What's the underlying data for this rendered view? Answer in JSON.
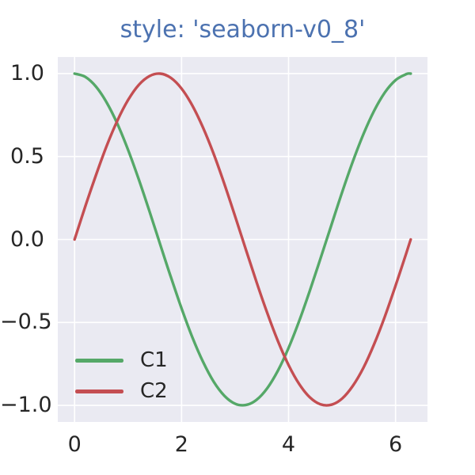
{
  "chart_data": {
    "type": "line",
    "title": "style: 'seaborn-v0_8'",
    "xlabel": "",
    "ylabel": "",
    "grid": true,
    "xlim": [
      -0.3142,
      6.5973
    ],
    "ylim": [
      -1.1,
      1.1
    ],
    "x": [
      0,
      0.2,
      0.4,
      0.6,
      0.8,
      1.0,
      1.2,
      1.4,
      1.6,
      1.8,
      2.0,
      2.2,
      2.4,
      2.6,
      2.8,
      3.0,
      3.2,
      3.4,
      3.6,
      3.8,
      4.0,
      4.2,
      4.4,
      4.6,
      4.8,
      5.0,
      5.2,
      5.4,
      5.6,
      5.8,
      6.0,
      6.2,
      6.2832
    ],
    "series": [
      {
        "name": "C1",
        "color": "#55A868",
        "values": [
          1.0,
          0.98,
          0.921,
          0.825,
          0.697,
          0.54,
          0.362,
          0.17,
          -0.029,
          -0.227,
          -0.416,
          -0.589,
          -0.737,
          -0.857,
          -0.942,
          -0.99,
          -0.998,
          -0.967,
          -0.897,
          -0.791,
          -0.654,
          -0.49,
          -0.307,
          -0.112,
          0.087,
          0.284,
          0.469,
          0.635,
          0.776,
          0.886,
          0.96,
          0.997,
          1.0
        ]
      },
      {
        "name": "C2",
        "color": "#C44E52",
        "values": [
          0.0,
          0.199,
          0.389,
          0.565,
          0.717,
          0.841,
          0.932,
          0.985,
          1.0,
          0.974,
          0.909,
          0.808,
          0.675,
          0.516,
          0.335,
          0.141,
          -0.058,
          -0.256,
          -0.442,
          -0.612,
          -0.757,
          -0.872,
          -0.952,
          -0.994,
          -0.996,
          -0.959,
          -0.883,
          -0.773,
          -0.631,
          -0.465,
          -0.279,
          -0.083,
          0.0
        ]
      }
    ],
    "xticks": {
      "values": [
        0,
        2,
        4,
        6
      ],
      "labels": [
        "0",
        "2",
        "4",
        "6"
      ]
    },
    "yticks": {
      "values": [
        1.0,
        0.5,
        0.0,
        -0.5,
        -1.0
      ],
      "labels": [
        "1.0",
        "0.5",
        "0.0",
        "−0.5",
        "−1.0"
      ]
    },
    "legend": {
      "position": "lower left",
      "entries": [
        "C1",
        "C2"
      ]
    },
    "styles": {
      "figure_bg": "#FFFFFF",
      "axes_bg": "#EAEAF2",
      "grid_color": "#FFFFFF",
      "title_color": "#4C72B0",
      "tick_color": "#262626",
      "line_width": 3.4,
      "grid_width": 1.6
    }
  }
}
